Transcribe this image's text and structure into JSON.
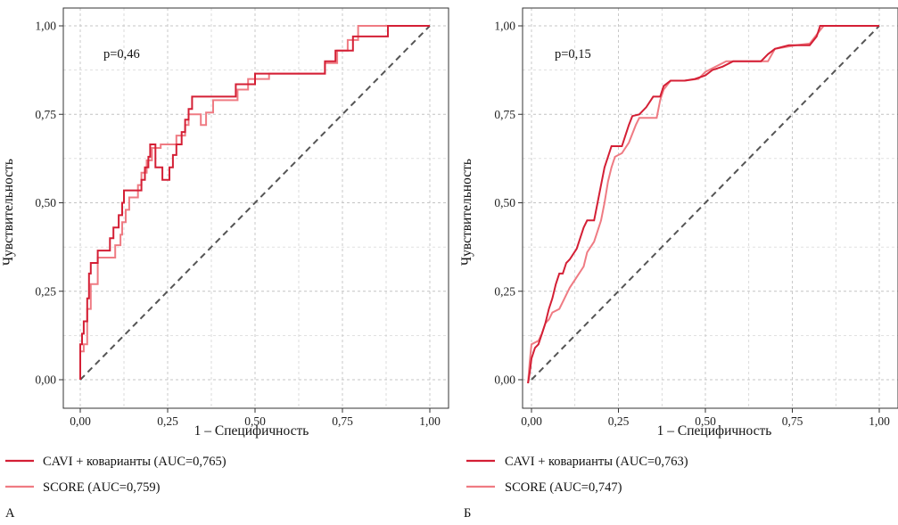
{
  "colors": {
    "cavi": "#d41f35",
    "score": "#ef7b83",
    "diagonal": "#555555",
    "grid": "#c4c4c4"
  },
  "chart_data": [
    {
      "type": "line",
      "panel_label": "А",
      "annotation": "p=0,46",
      "xlabel": "1 – Специфичность",
      "ylabel": "Чувствительность",
      "xlim": [
        0,
        1
      ],
      "ylim": [
        0,
        1
      ],
      "xticks": [
        "0,00",
        "0,25",
        "0,50",
        "0,75",
        "1,00"
      ],
      "yticks": [
        "0,00",
        "0,25",
        "0,50",
        "0,75",
        "1,00"
      ],
      "grid": true,
      "legend": [
        {
          "label": "CAVI + коварианты (AUC=0,765)",
          "series": 0
        },
        {
          "label": "SCORE (AUC=0,759)",
          "series": 1
        }
      ],
      "series": [
        {
          "name": "CAVI + коварианты (AUC=0,765)",
          "auc": 0.765,
          "points": [
            [
              0,
              0
            ],
            [
              0,
              0.1
            ],
            [
              0.005,
              0.1
            ],
            [
              0.005,
              0.13
            ],
            [
              0.01,
              0.13
            ],
            [
              0.01,
              0.165
            ],
            [
              0.02,
              0.165
            ],
            [
              0.02,
              0.23
            ],
            [
              0.025,
              0.23
            ],
            [
              0.025,
              0.3
            ],
            [
              0.03,
              0.3
            ],
            [
              0.03,
              0.33
            ],
            [
              0.05,
              0.33
            ],
            [
              0.05,
              0.365
            ],
            [
              0.085,
              0.365
            ],
            [
              0.085,
              0.4
            ],
            [
              0.095,
              0.4
            ],
            [
              0.095,
              0.43
            ],
            [
              0.11,
              0.43
            ],
            [
              0.11,
              0.465
            ],
            [
              0.12,
              0.465
            ],
            [
              0.12,
              0.5
            ],
            [
              0.125,
              0.5
            ],
            [
              0.125,
              0.535
            ],
            [
              0.175,
              0.535
            ],
            [
              0.175,
              0.565
            ],
            [
              0.185,
              0.565
            ],
            [
              0.185,
              0.6
            ],
            [
              0.195,
              0.6
            ],
            [
              0.195,
              0.63
            ],
            [
              0.2,
              0.63
            ],
            [
              0.2,
              0.665
            ],
            [
              0.215,
              0.665
            ],
            [
              0.215,
              0.6
            ],
            [
              0.235,
              0.6
            ],
            [
              0.235,
              0.565
            ],
            [
              0.255,
              0.565
            ],
            [
              0.255,
              0.6
            ],
            [
              0.265,
              0.6
            ],
            [
              0.265,
              0.635
            ],
            [
              0.275,
              0.635
            ],
            [
              0.275,
              0.665
            ],
            [
              0.29,
              0.665
            ],
            [
              0.29,
              0.7
            ],
            [
              0.3,
              0.7
            ],
            [
              0.3,
              0.735
            ],
            [
              0.31,
              0.735
            ],
            [
              0.31,
              0.765
            ],
            [
              0.32,
              0.765
            ],
            [
              0.32,
              0.8
            ],
            [
              0.395,
              0.8
            ],
            [
              0.395,
              0.8
            ],
            [
              0.445,
              0.8
            ],
            [
              0.445,
              0.835
            ],
            [
              0.5,
              0.835
            ],
            [
              0.5,
              0.865
            ],
            [
              0.7,
              0.865
            ],
            [
              0.7,
              0.9
            ],
            [
              0.73,
              0.9
            ],
            [
              0.73,
              0.93
            ],
            [
              0.78,
              0.93
            ],
            [
              0.78,
              0.97
            ],
            [
              0.88,
              0.97
            ],
            [
              0.88,
              1.0
            ],
            [
              1.0,
              1.0
            ]
          ]
        },
        {
          "name": "SCORE (AUC=0,759)",
          "auc": 0.759,
          "points": [
            [
              0,
              0
            ],
            [
              0,
              0.08
            ],
            [
              0.01,
              0.08
            ],
            [
              0.01,
              0.1
            ],
            [
              0.02,
              0.1
            ],
            [
              0.02,
              0.2
            ],
            [
              0.03,
              0.2
            ],
            [
              0.03,
              0.27
            ],
            [
              0.05,
              0.27
            ],
            [
              0.05,
              0.345
            ],
            [
              0.1,
              0.345
            ],
            [
              0.1,
              0.38
            ],
            [
              0.115,
              0.38
            ],
            [
              0.115,
              0.41
            ],
            [
              0.12,
              0.41
            ],
            [
              0.12,
              0.445
            ],
            [
              0.13,
              0.445
            ],
            [
              0.13,
              0.48
            ],
            [
              0.14,
              0.48
            ],
            [
              0.14,
              0.515
            ],
            [
              0.165,
              0.515
            ],
            [
              0.165,
              0.55
            ],
            [
              0.175,
              0.55
            ],
            [
              0.175,
              0.585
            ],
            [
              0.19,
              0.585
            ],
            [
              0.19,
              0.62
            ],
            [
              0.205,
              0.62
            ],
            [
              0.205,
              0.655
            ],
            [
              0.23,
              0.655
            ],
            [
              0.23,
              0.665
            ],
            [
              0.275,
              0.665
            ],
            [
              0.275,
              0.69
            ],
            [
              0.3,
              0.69
            ],
            [
              0.3,
              0.72
            ],
            [
              0.31,
              0.72
            ],
            [
              0.31,
              0.75
            ],
            [
              0.345,
              0.75
            ],
            [
              0.345,
              0.72
            ],
            [
              0.36,
              0.72
            ],
            [
              0.36,
              0.755
            ],
            [
              0.38,
              0.755
            ],
            [
              0.38,
              0.79
            ],
            [
              0.45,
              0.79
            ],
            [
              0.45,
              0.82
            ],
            [
              0.48,
              0.82
            ],
            [
              0.48,
              0.85
            ],
            [
              0.54,
              0.85
            ],
            [
              0.54,
              0.865
            ],
            [
              0.7,
              0.865
            ],
            [
              0.7,
              0.895
            ],
            [
              0.735,
              0.895
            ],
            [
              0.735,
              0.93
            ],
            [
              0.765,
              0.93
            ],
            [
              0.765,
              0.96
            ],
            [
              0.795,
              0.96
            ],
            [
              0.795,
              1.0
            ],
            [
              1.0,
              1.0
            ]
          ]
        }
      ]
    },
    {
      "type": "line",
      "panel_label": "Б",
      "annotation": "p=0,15",
      "xlabel": "1 – Специфичность",
      "ylabel": "Чувствительность",
      "xlim": [
        0,
        1
      ],
      "ylim": [
        0,
        1
      ],
      "xticks": [
        "0,00",
        "0,25",
        "0,50",
        "0,75",
        "1,00"
      ],
      "yticks": [
        "0,00",
        "0,25",
        "0,50",
        "0,75",
        "1,00"
      ],
      "grid": true,
      "legend": [
        {
          "label": "CAVI + коварианты (AUC=0,763)",
          "series": 0
        },
        {
          "label": "SCORE (AUC=0,747)",
          "series": 1
        }
      ],
      "series": [
        {
          "name": "CAVI + коварианты (AUC=0,763)",
          "auc": 0.763,
          "points": [
            [
              -0.01,
              -0.01
            ],
            [
              -0.005,
              0.02
            ],
            [
              0,
              0.06
            ],
            [
              0.01,
              0.09
            ],
            [
              0.02,
              0.1
            ],
            [
              0.03,
              0.13
            ],
            [
              0.04,
              0.16
            ],
            [
              0.05,
              0.2
            ],
            [
              0.06,
              0.23
            ],
            [
              0.07,
              0.27
            ],
            [
              0.08,
              0.3
            ],
            [
              0.09,
              0.3
            ],
            [
              0.1,
              0.33
            ],
            [
              0.11,
              0.34
            ],
            [
              0.13,
              0.37
            ],
            [
              0.14,
              0.4
            ],
            [
              0.15,
              0.43
            ],
            [
              0.16,
              0.45
            ],
            [
              0.18,
              0.45
            ],
            [
              0.19,
              0.5
            ],
            [
              0.2,
              0.55
            ],
            [
              0.21,
              0.6
            ],
            [
              0.22,
              0.63
            ],
            [
              0.23,
              0.66
            ],
            [
              0.26,
              0.66
            ],
            [
              0.27,
              0.69
            ],
            [
              0.28,
              0.72
            ],
            [
              0.29,
              0.745
            ],
            [
              0.31,
              0.75
            ],
            [
              0.33,
              0.77
            ],
            [
              0.35,
              0.8
            ],
            [
              0.37,
              0.8
            ],
            [
              0.38,
              0.83
            ],
            [
              0.4,
              0.845
            ],
            [
              0.44,
              0.845
            ],
            [
              0.47,
              0.85
            ],
            [
              0.5,
              0.86
            ],
            [
              0.52,
              0.875
            ],
            [
              0.55,
              0.885
            ],
            [
              0.58,
              0.9
            ],
            [
              0.66,
              0.9
            ],
            [
              0.68,
              0.92
            ],
            [
              0.7,
              0.935
            ],
            [
              0.74,
              0.945
            ],
            [
              0.8,
              0.945
            ],
            [
              0.82,
              0.97
            ],
            [
              0.83,
              1.0
            ],
            [
              1.0,
              1.0
            ]
          ]
        },
        {
          "name": "SCORE (AUC=0,747)",
          "auc": 0.747,
          "points": [
            [
              -0.01,
              -0.01
            ],
            [
              -0.005,
              0.05
            ],
            [
              0,
              0.1
            ],
            [
              0.02,
              0.11
            ],
            [
              0.03,
              0.13
            ],
            [
              0.04,
              0.16
            ],
            [
              0.05,
              0.17
            ],
            [
              0.06,
              0.19
            ],
            [
              0.08,
              0.2
            ],
            [
              0.09,
              0.22
            ],
            [
              0.1,
              0.24
            ],
            [
              0.11,
              0.26
            ],
            [
              0.13,
              0.29
            ],
            [
              0.15,
              0.32
            ],
            [
              0.16,
              0.36
            ],
            [
              0.18,
              0.39
            ],
            [
              0.19,
              0.42
            ],
            [
              0.2,
              0.45
            ],
            [
              0.21,
              0.5
            ],
            [
              0.22,
              0.56
            ],
            [
              0.23,
              0.6
            ],
            [
              0.24,
              0.63
            ],
            [
              0.26,
              0.64
            ],
            [
              0.28,
              0.67
            ],
            [
              0.3,
              0.72
            ],
            [
              0.31,
              0.74
            ],
            [
              0.36,
              0.74
            ],
            [
              0.37,
              0.79
            ],
            [
              0.38,
              0.82
            ],
            [
              0.4,
              0.845
            ],
            [
              0.44,
              0.845
            ],
            [
              0.48,
              0.85
            ],
            [
              0.5,
              0.87
            ],
            [
              0.52,
              0.88
            ],
            [
              0.56,
              0.9
            ],
            [
              0.68,
              0.9
            ],
            [
              0.7,
              0.935
            ],
            [
              0.76,
              0.945
            ],
            [
              0.8,
              0.95
            ],
            [
              0.82,
              0.975
            ],
            [
              0.84,
              1.0
            ],
            [
              1.0,
              1.0
            ]
          ]
        }
      ]
    }
  ]
}
